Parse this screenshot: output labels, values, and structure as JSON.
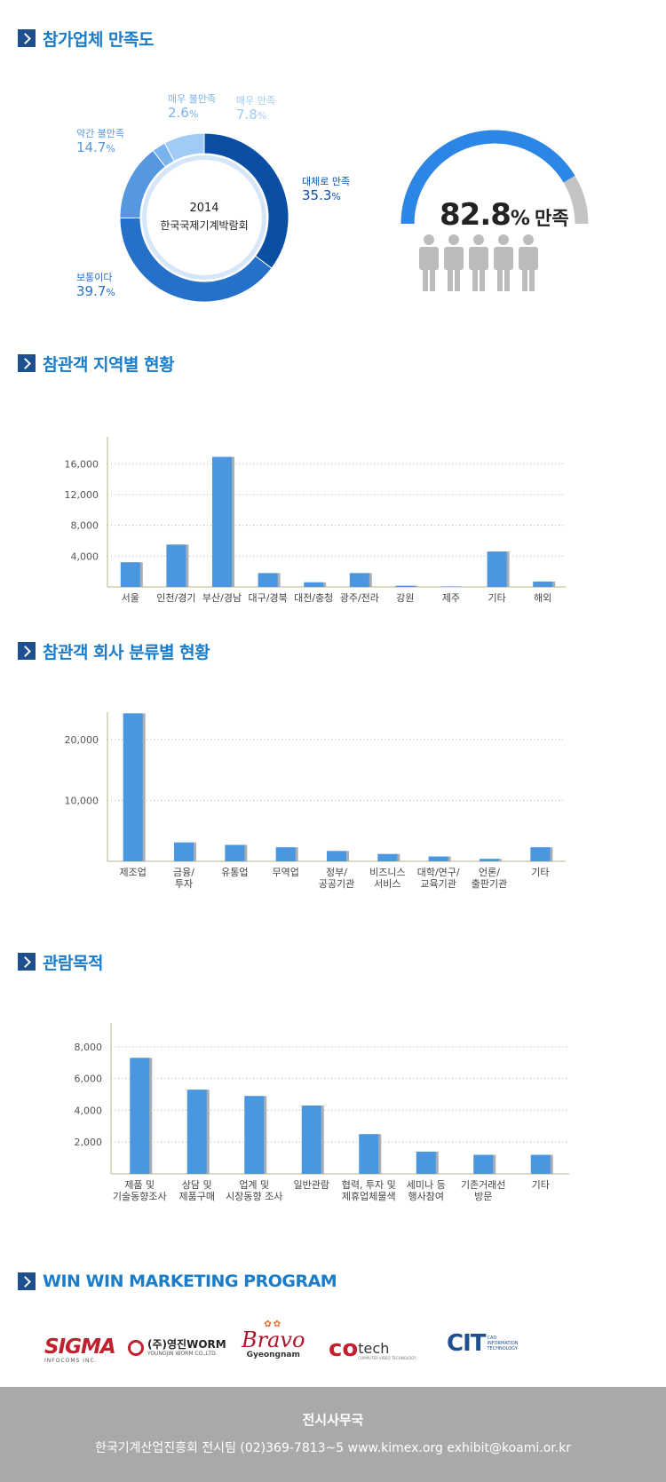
{
  "sections": {
    "satisfaction": "참가업체 만족도",
    "region": "참관객 지역별 현황",
    "company": "참관객 회사 분류별 현황",
    "purpose": "관람목적",
    "winwin": "WIN WIN MARKETING PROGRAM"
  },
  "donut_center": {
    "year": "2014",
    "name": "한국국제기계박람회"
  },
  "donut_labels": [
    {
      "name": "대체로 만족",
      "value": "35.3",
      "unit": "%"
    },
    {
      "name": "보통이다",
      "value": "39.7",
      "unit": "%"
    },
    {
      "name": "약간 불만족",
      "value": "14.7",
      "unit": "%"
    },
    {
      "name": "매우 불만족",
      "value": "2.6",
      "unit": "%"
    },
    {
      "name": "매우 만족",
      "value": "7.8",
      "unit": "%"
    }
  ],
  "gauge": {
    "value": "82.8",
    "unit": "%",
    "label": "만족",
    "fraction": 0.828
  },
  "colors": {
    "title": "#1b7cc9",
    "bar": "#4a97e0",
    "bar_shadow": "#a8aeb6",
    "gauge": "#2c86e6",
    "gauge_bg": "#c4c4c4",
    "person": "#bcbcbc"
  },
  "chart_data": [
    {
      "type": "pie",
      "categories": [
        "대체로 만족",
        "보통이다",
        "약간 불만족",
        "매우 불만족",
        "매우 만족"
      ],
      "values": [
        35.3,
        39.7,
        14.7,
        2.6,
        7.8
      ],
      "colors": [
        "#0b4fa5",
        "#2570c8",
        "#5598df",
        "#7ab4ee",
        "#9fcbf5"
      ]
    },
    {
      "type": "bar",
      "categories": [
        "서울",
        "인천/경기",
        "부산/경남",
        "대구/경북",
        "대전/충청",
        "광주/전라",
        "강원",
        "제주",
        "기타",
        "해외"
      ],
      "values": [
        3200,
        5500,
        16900,
        1800,
        600,
        1800,
        150,
        60,
        4600,
        700
      ],
      "ytick_labels": [
        "4,000",
        "8,000",
        "12,000",
        "16,000"
      ],
      "yticks": [
        4000,
        8000,
        12000,
        16000
      ],
      "ylim": [
        0,
        19500
      ],
      "grid": true
    },
    {
      "type": "bar",
      "categories": [
        "제조업",
        "금융/\n투자",
        "유통업",
        "무역업",
        "정부/\n공공기관",
        "비즈니스\n서비스",
        "대학/연구/\n교육기관",
        "언론/\n출판기관",
        "기타"
      ],
      "values": [
        24300,
        3100,
        2700,
        2300,
        1700,
        1200,
        800,
        400,
        2300
      ],
      "ytick_labels": [
        "10,000",
        "20,000"
      ],
      "yticks": [
        10000,
        20000
      ],
      "ylim": [
        0,
        24500
      ],
      "grid": true
    },
    {
      "type": "bar",
      "categories": [
        "제품 및\n기술동향조사",
        "상담 및\n제품구매",
        "업계 및\n시장동향 조사",
        "일반관람",
        "협력, 투자 및\n제휴업체물색",
        "세미나 등\n행사참여",
        "기존거래선\n방문",
        "기타"
      ],
      "values": [
        7300,
        5300,
        4900,
        4300,
        2500,
        1400,
        1200,
        1200
      ],
      "ytick_labels": [
        "2,000",
        "4,000",
        "6,000",
        "8,000"
      ],
      "yticks": [
        2000,
        4000,
        6000,
        8000
      ],
      "ylim": [
        0,
        9500
      ],
      "grid": true
    }
  ],
  "logos": {
    "sigma": "SIGMA",
    "sigma_sub": "INFOCOMS INC.",
    "youngjin": "(주)영진WORM",
    "youngjin_sub": "YOUNGJIN WORM CO.,LTD.",
    "bravo": "Bravo",
    "bravo_sub": "Gyeongnam",
    "cotech": "tech",
    "cotech_sub": "COMPUTER VIDEO TECHNOLOGY",
    "cit": "CIT",
    "cit_sub": "CAD INFORMATION TECHNOLOGY"
  },
  "footer": {
    "title": "전시사무국",
    "contact": "한국기계산업진흥회 전시팀 (02)369-7813~5  www.kimex.org  exhibit@koami.or.kr"
  }
}
